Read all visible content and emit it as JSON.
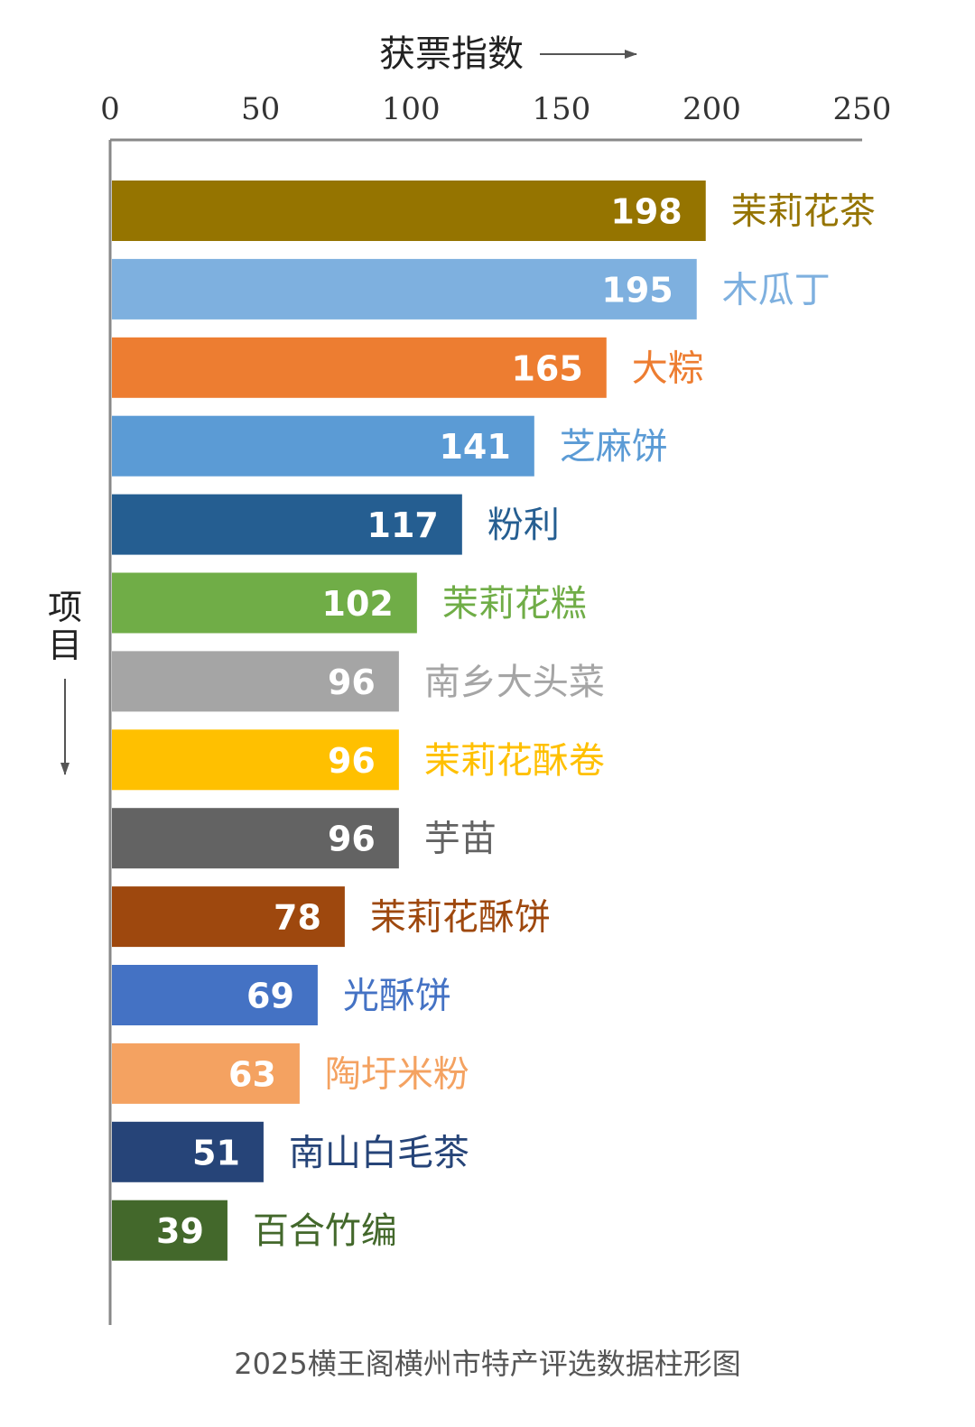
{
  "chart_data": {
    "type": "bar",
    "orientation": "horizontal",
    "xlabel": "获票指数",
    "ylabel": "项目",
    "xlim": [
      0,
      250
    ],
    "xticks": [
      0,
      50,
      100,
      150,
      200,
      250
    ],
    "grid": false,
    "legend": "none",
    "categories": [
      "茉莉花茶",
      "木瓜丁",
      "大粽",
      "芝麻饼",
      "粉利",
      "茉莉花糕",
      "南乡大头菜",
      "茉莉花酥卷",
      "芋苗",
      "茉莉花酥饼",
      "光酥饼",
      "陶圩米粉",
      "南山白毛茶",
      "百合竹编"
    ],
    "values": [
      198,
      195,
      165,
      141,
      117,
      102,
      96,
      96,
      96,
      78,
      69,
      63,
      51,
      39
    ],
    "colors": [
      "#957400",
      "#7eb0df",
      "#ed7d31",
      "#5b9bd5",
      "#255e91",
      "#70ad47",
      "#a5a5a5",
      "#ffc000",
      "#636363",
      "#9e480e",
      "#4472c4",
      "#f4a261",
      "#264478",
      "#43682b"
    ],
    "label_colors": [
      "#957400",
      "#7eb0df",
      "#ed7d31",
      "#5b9bd5",
      "#255e91",
      "#70ad47",
      "#a5a5a5",
      "#ffc000",
      "#636363",
      "#9e480e",
      "#4472c4",
      "#f4a261",
      "#264478",
      "#43682b"
    ]
  },
  "caption": "2025横王阁横州市特产评选数据柱形图"
}
